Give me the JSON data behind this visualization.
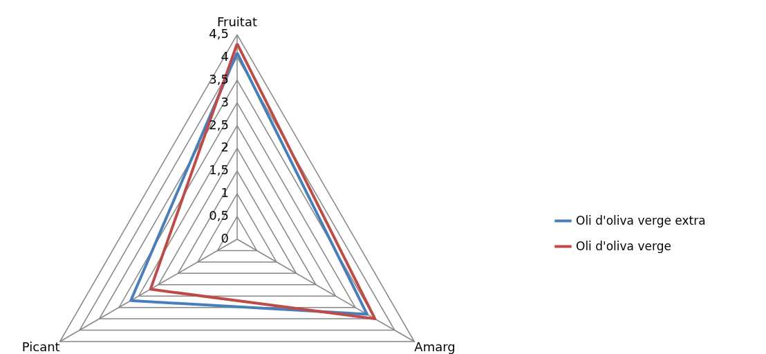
{
  "chart_data": {
    "type": "radar",
    "categories": [
      "Fruitat",
      "Amarg",
      "Picant"
    ],
    "series": [
      {
        "name": "Oli d'oliva verge extra",
        "color": "#4a7ebb",
        "values": [
          4.1,
          3.3,
          2.7
        ]
      },
      {
        "name": "Oli d'oliva verge",
        "color": "#be4b48",
        "values": [
          4.3,
          3.5,
          2.2
        ]
      }
    ],
    "ylim": [
      0,
      4.5
    ],
    "yticks": [
      0,
      {
        "value": 0.5,
        "label": "0,5"
      },
      1,
      {
        "value": 1.5,
        "label": "1,5"
      },
      2,
      {
        "value": 2.5,
        "label": "2,5"
      },
      3,
      {
        "value": 3.5,
        "label": "3,5"
      },
      4,
      {
        "value": 4.5,
        "label": "4,5"
      }
    ],
    "grid": true,
    "legend": "right"
  }
}
